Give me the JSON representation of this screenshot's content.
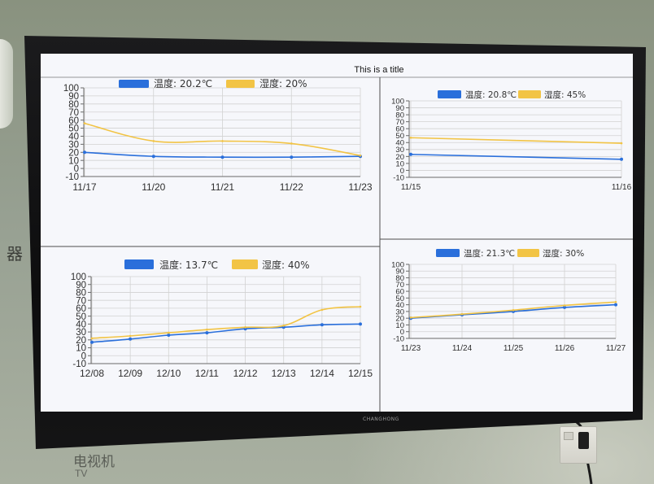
{
  "wall": {
    "side_sign": "器",
    "tv_label_cn": "电视机",
    "tv_label_en": "TV"
  },
  "tv": {
    "brand": "CHANGHONG"
  },
  "screen": {
    "title": "This is a title"
  },
  "colors": {
    "wall": "#98a093",
    "bezel": "#111111",
    "screen_background": "#f6f7fb",
    "grid": "#d2d2d2",
    "axis": "#6a6a6a",
    "divider": "#4d4d4d",
    "temperature": "#2a6fdb",
    "humidity": "#f2c445",
    "text": "#333333"
  },
  "chart_data": [
    {
      "type": "line",
      "legend": "top",
      "grid": true,
      "ylim": [
        -10,
        100
      ],
      "y_ticks": [
        100,
        90,
        80,
        70,
        60,
        50,
        40,
        30,
        20,
        10,
        0,
        -10
      ],
      "categories": [
        "11/17",
        "11/20",
        "11/21",
        "11/22",
        "11/23"
      ],
      "series": [
        {
          "name": "温度: 20.2℃",
          "color": "#2a6fdb",
          "values": [
            20,
            15,
            14,
            14,
            15
          ]
        },
        {
          "name": "湿度: 20%",
          "color": "#f2c445",
          "values": [
            56,
            34,
            34,
            31,
            16
          ]
        }
      ]
    },
    {
      "type": "line",
      "legend": "top",
      "grid": true,
      "ylim": [
        -10,
        100
      ],
      "y_ticks": [
        100,
        90,
        80,
        70,
        60,
        50,
        40,
        30,
        20,
        10,
        0,
        -10
      ],
      "categories": [
        "11/15",
        "11/16"
      ],
      "series": [
        {
          "name": "温度: 20.8℃",
          "color": "#2a6fdb",
          "values": [
            23,
            16
          ]
        },
        {
          "name": "湿度: 45%",
          "color": "#f2c445",
          "values": [
            47,
            39
          ]
        }
      ]
    },
    {
      "type": "line",
      "legend": "top",
      "grid": true,
      "ylim": [
        -10,
        100
      ],
      "y_ticks": [
        100,
        90,
        80,
        70,
        60,
        50,
        40,
        30,
        20,
        10,
        0,
        -10
      ],
      "categories": [
        "12/08",
        "12/09",
        "12/10",
        "12/11",
        "12/12",
        "12/13",
        "12/14",
        "12/15"
      ],
      "series": [
        {
          "name": "温度: 13.7℃",
          "color": "#2a6fdb",
          "values": [
            17,
            21,
            26,
            29,
            34,
            36,
            39,
            40
          ]
        },
        {
          "name": "湿度: 40%",
          "color": "#f2c445",
          "values": [
            22,
            25,
            29,
            33,
            36,
            38,
            58,
            62
          ]
        }
      ]
    },
    {
      "type": "line",
      "legend": "top",
      "grid": true,
      "ylim": [
        -10,
        100
      ],
      "y_ticks": [
        100,
        90,
        80,
        70,
        60,
        50,
        40,
        30,
        20,
        10,
        0,
        -10
      ],
      "categories": [
        "11/23",
        "11/24",
        "11/25",
        "11/26",
        "11/27"
      ],
      "series": [
        {
          "name": "温度: 21.3℃",
          "color": "#2a6fdb",
          "values": [
            20,
            25,
            30,
            36,
            40
          ]
        },
        {
          "name": "湿度: 30%",
          "color": "#f2c445",
          "values": [
            21,
            26,
            32,
            39,
            44
          ]
        }
      ]
    }
  ]
}
